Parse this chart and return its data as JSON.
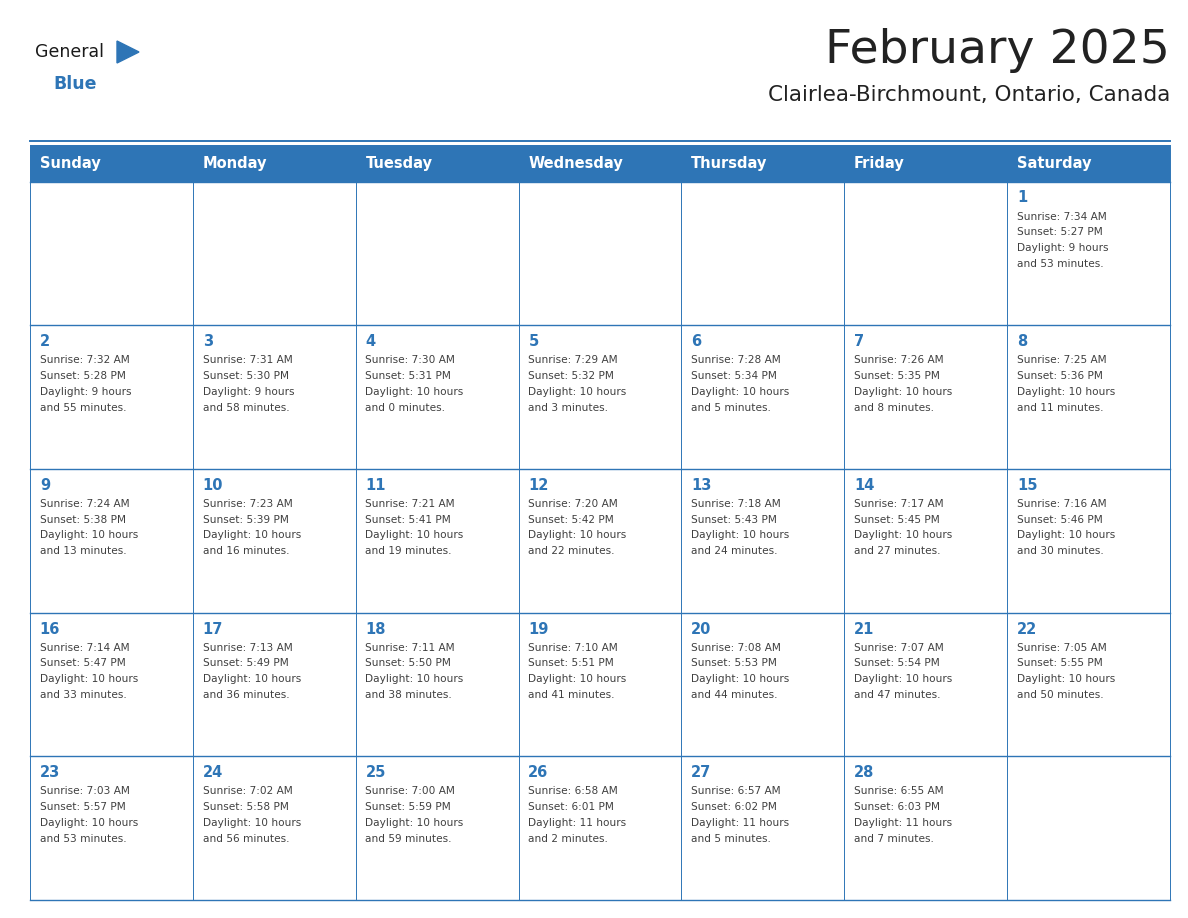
{
  "title": "February 2025",
  "subtitle": "Clairlea-Birchmount, Ontario, Canada",
  "header_bg": "#2E75B6",
  "header_text_color": "#FFFFFF",
  "cell_bg": "#FFFFFF",
  "border_color": "#2E75B6",
  "text_color": "#404040",
  "day_num_color": "#2E75B6",
  "title_color": "#222222",
  "subtitle_color": "#222222",
  "days_of_week": [
    "Sunday",
    "Monday",
    "Tuesday",
    "Wednesday",
    "Thursday",
    "Friday",
    "Saturday"
  ],
  "weeks": [
    [
      {
        "day": "",
        "info": ""
      },
      {
        "day": "",
        "info": ""
      },
      {
        "day": "",
        "info": ""
      },
      {
        "day": "",
        "info": ""
      },
      {
        "day": "",
        "info": ""
      },
      {
        "day": "",
        "info": ""
      },
      {
        "day": "1",
        "info": "Sunrise: 7:34 AM\nSunset: 5:27 PM\nDaylight: 9 hours\nand 53 minutes."
      }
    ],
    [
      {
        "day": "2",
        "info": "Sunrise: 7:32 AM\nSunset: 5:28 PM\nDaylight: 9 hours\nand 55 minutes."
      },
      {
        "day": "3",
        "info": "Sunrise: 7:31 AM\nSunset: 5:30 PM\nDaylight: 9 hours\nand 58 minutes."
      },
      {
        "day": "4",
        "info": "Sunrise: 7:30 AM\nSunset: 5:31 PM\nDaylight: 10 hours\nand 0 minutes."
      },
      {
        "day": "5",
        "info": "Sunrise: 7:29 AM\nSunset: 5:32 PM\nDaylight: 10 hours\nand 3 minutes."
      },
      {
        "day": "6",
        "info": "Sunrise: 7:28 AM\nSunset: 5:34 PM\nDaylight: 10 hours\nand 5 minutes."
      },
      {
        "day": "7",
        "info": "Sunrise: 7:26 AM\nSunset: 5:35 PM\nDaylight: 10 hours\nand 8 minutes."
      },
      {
        "day": "8",
        "info": "Sunrise: 7:25 AM\nSunset: 5:36 PM\nDaylight: 10 hours\nand 11 minutes."
      }
    ],
    [
      {
        "day": "9",
        "info": "Sunrise: 7:24 AM\nSunset: 5:38 PM\nDaylight: 10 hours\nand 13 minutes."
      },
      {
        "day": "10",
        "info": "Sunrise: 7:23 AM\nSunset: 5:39 PM\nDaylight: 10 hours\nand 16 minutes."
      },
      {
        "day": "11",
        "info": "Sunrise: 7:21 AM\nSunset: 5:41 PM\nDaylight: 10 hours\nand 19 minutes."
      },
      {
        "day": "12",
        "info": "Sunrise: 7:20 AM\nSunset: 5:42 PM\nDaylight: 10 hours\nand 22 minutes."
      },
      {
        "day": "13",
        "info": "Sunrise: 7:18 AM\nSunset: 5:43 PM\nDaylight: 10 hours\nand 24 minutes."
      },
      {
        "day": "14",
        "info": "Sunrise: 7:17 AM\nSunset: 5:45 PM\nDaylight: 10 hours\nand 27 minutes."
      },
      {
        "day": "15",
        "info": "Sunrise: 7:16 AM\nSunset: 5:46 PM\nDaylight: 10 hours\nand 30 minutes."
      }
    ],
    [
      {
        "day": "16",
        "info": "Sunrise: 7:14 AM\nSunset: 5:47 PM\nDaylight: 10 hours\nand 33 minutes."
      },
      {
        "day": "17",
        "info": "Sunrise: 7:13 AM\nSunset: 5:49 PM\nDaylight: 10 hours\nand 36 minutes."
      },
      {
        "day": "18",
        "info": "Sunrise: 7:11 AM\nSunset: 5:50 PM\nDaylight: 10 hours\nand 38 minutes."
      },
      {
        "day": "19",
        "info": "Sunrise: 7:10 AM\nSunset: 5:51 PM\nDaylight: 10 hours\nand 41 minutes."
      },
      {
        "day": "20",
        "info": "Sunrise: 7:08 AM\nSunset: 5:53 PM\nDaylight: 10 hours\nand 44 minutes."
      },
      {
        "day": "21",
        "info": "Sunrise: 7:07 AM\nSunset: 5:54 PM\nDaylight: 10 hours\nand 47 minutes."
      },
      {
        "day": "22",
        "info": "Sunrise: 7:05 AM\nSunset: 5:55 PM\nDaylight: 10 hours\nand 50 minutes."
      }
    ],
    [
      {
        "day": "23",
        "info": "Sunrise: 7:03 AM\nSunset: 5:57 PM\nDaylight: 10 hours\nand 53 minutes."
      },
      {
        "day": "24",
        "info": "Sunrise: 7:02 AM\nSunset: 5:58 PM\nDaylight: 10 hours\nand 56 minutes."
      },
      {
        "day": "25",
        "info": "Sunrise: 7:00 AM\nSunset: 5:59 PM\nDaylight: 10 hours\nand 59 minutes."
      },
      {
        "day": "26",
        "info": "Sunrise: 6:58 AM\nSunset: 6:01 PM\nDaylight: 11 hours\nand 2 minutes."
      },
      {
        "day": "27",
        "info": "Sunrise: 6:57 AM\nSunset: 6:02 PM\nDaylight: 11 hours\nand 5 minutes."
      },
      {
        "day": "28",
        "info": "Sunrise: 6:55 AM\nSunset: 6:03 PM\nDaylight: 11 hours\nand 7 minutes."
      },
      {
        "day": "",
        "info": ""
      }
    ]
  ]
}
